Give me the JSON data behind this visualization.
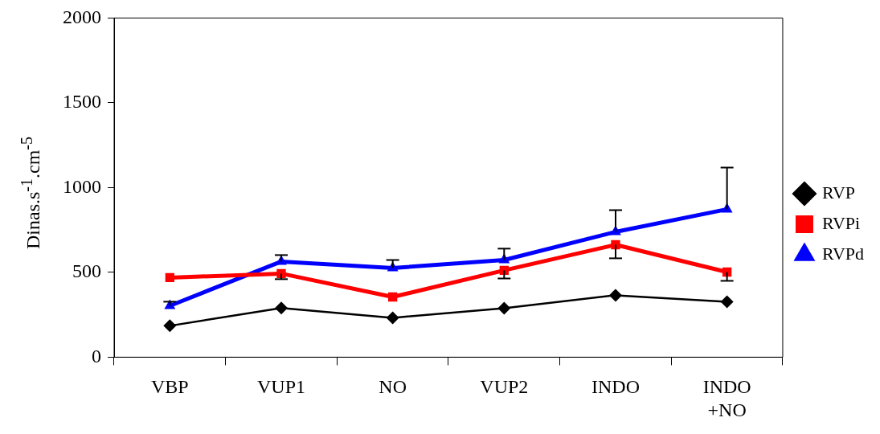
{
  "chart_data": {
    "type": "line",
    "ylabel": "Dinas.s$^{-1}$.cm$^{-5}$",
    "categories": [
      "VBP",
      "VUP1",
      "NO",
      "VUP2",
      "INDO",
      "INDO +NO"
    ],
    "ylim": [
      0,
      2000
    ],
    "yticks": [
      0,
      500,
      1000,
      1500,
      2000
    ],
    "grid": false,
    "legend": "right",
    "series": [
      {
        "name": "RVP",
        "color": "#000000",
        "marker": "diamond",
        "values": [
          185,
          290,
          232,
          289,
          365,
          327
        ]
      },
      {
        "name": "RVPi",
        "color": "#ff0000",
        "marker": "square",
        "values": [
          469,
          493,
          355,
          512,
          663,
          502
        ],
        "errors": [
          null,
          [
            460,
            493
          ],
          null,
          [
            464,
            512
          ],
          [
            583,
            663
          ],
          [
            450,
            502
          ]
        ]
      },
      {
        "name": "RVPd",
        "color": "#0000ff",
        "marker": "triangle",
        "values": [
          303,
          564,
          526,
          573,
          739,
          872
        ],
        "errors": [
          [
            303,
            327
          ],
          [
            564,
            602
          ],
          [
            526,
            573
          ],
          [
            573,
            640
          ],
          [
            739,
            867
          ],
          [
            872,
            1118
          ]
        ]
      }
    ]
  }
}
